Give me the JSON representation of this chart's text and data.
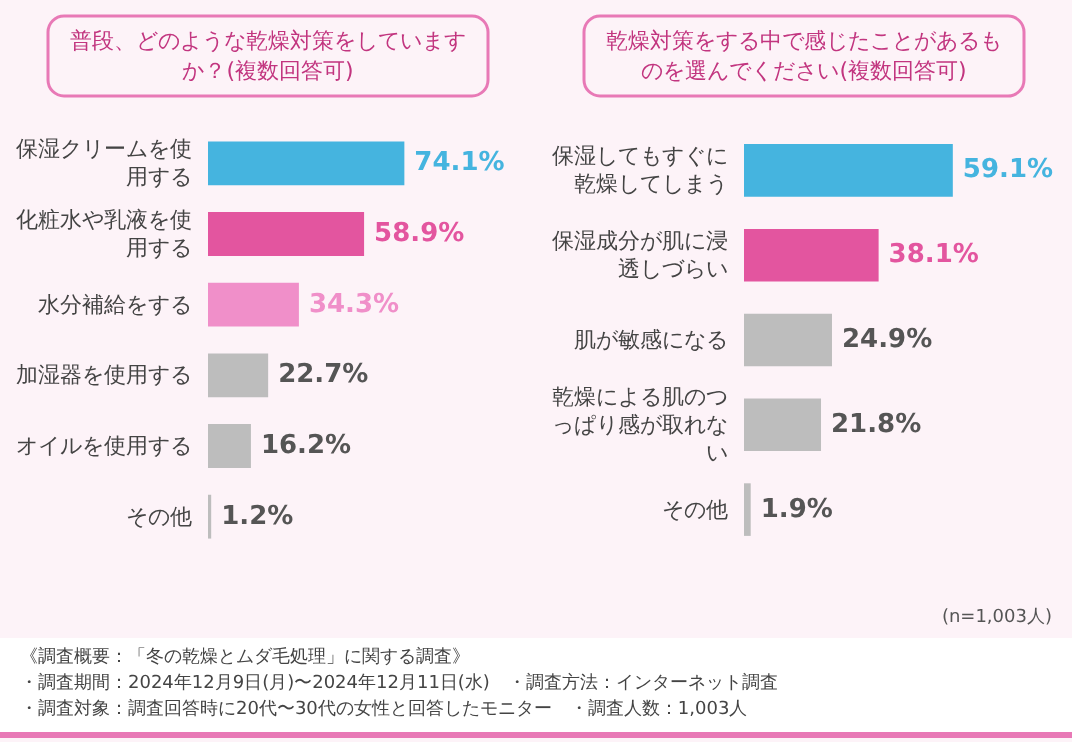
{
  "chart_data": [
    {
      "type": "bar",
      "orientation": "horizontal",
      "title": "普段、どのような乾燥対策をしていますか？(複数回答可)",
      "categories": [
        "保湿クリームを使用する",
        "化粧水や乳液を使用する",
        "水分補給をする",
        "加湿器を使用する",
        "オイルを使用する",
        "その他"
      ],
      "values": [
        74.1,
        58.9,
        34.3,
        22.7,
        16.2,
        1.2
      ],
      "colors": [
        "#45b4df",
        "#e3559f",
        "#f08fc9",
        "#bdbdbd",
        "#bdbdbd",
        "#bdbdbd"
      ],
      "value_labels": [
        "74.1%",
        "58.9%",
        "34.3%",
        "22.7%",
        "16.2%",
        "1.2%"
      ]
    },
    {
      "type": "bar",
      "orientation": "horizontal",
      "title": "乾燥対策をする中で感じたことがあるものを選んでください(複数回答可)",
      "categories": [
        "保湿してもすぐに乾燥してしまう",
        "保湿成分が肌に浸透しづらい",
        "肌が敏感になる",
        "乾燥による肌のつっぱり感が取れない",
        "その他"
      ],
      "values": [
        59.1,
        38.1,
        24.9,
        21.8,
        1.9
      ],
      "colors": [
        "#45b4df",
        "#e3559f",
        "#bdbdbd",
        "#bdbdbd",
        "#bdbdbd"
      ],
      "value_labels": [
        "59.1%",
        "38.1%",
        "24.9%",
        "21.8%",
        "1.9%"
      ],
      "annotations": [
        "(n=1,003人)",
        "《調査概要：「冬の乾燥とムダ毛処理」に関する調査》",
        "・調査期間：2024年12月9日(月)〜2024年12月11日(水)　・調査方法：インターネット調査",
        "・調査対象：調査回答時に20代〜30代の女性と回答したモニター　・調査人数：1,003人"
      ]
    }
  ]
}
